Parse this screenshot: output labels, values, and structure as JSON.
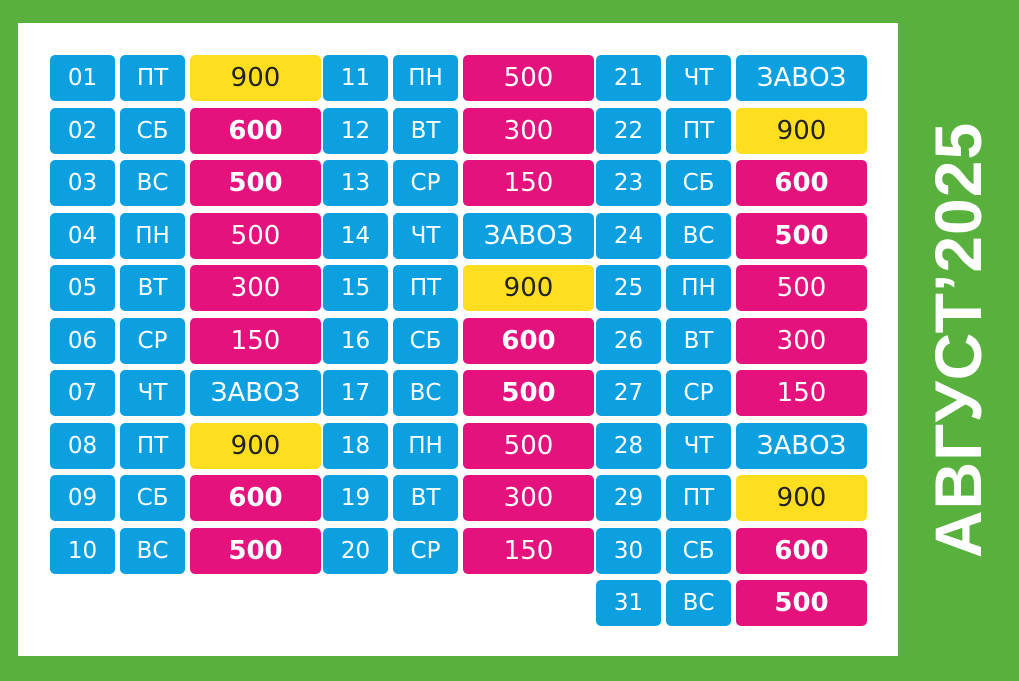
{
  "title": "АВГУСТ’2025",
  "colors": {
    "background_green": "#57b13c",
    "blue": "#0ca0e0",
    "magenta": "#e5127d",
    "yellow": "#ffde1f",
    "white": "#ffffff"
  },
  "columns": [
    [
      {
        "date": "01",
        "day": "ПТ",
        "value": "900",
        "color": "yellow",
        "bold": false
      },
      {
        "date": "02",
        "day": "СБ",
        "value": "600",
        "color": "magenta",
        "bold": true
      },
      {
        "date": "03",
        "day": "ВС",
        "value": "500",
        "color": "magenta",
        "bold": true
      },
      {
        "date": "04",
        "day": "ПН",
        "value": "500",
        "color": "magenta",
        "bold": false
      },
      {
        "date": "05",
        "day": "ВТ",
        "value": "300",
        "color": "magenta",
        "bold": false
      },
      {
        "date": "06",
        "day": "СР",
        "value": "150",
        "color": "magenta",
        "bold": false
      },
      {
        "date": "07",
        "day": "ЧТ",
        "value": "ЗАВОЗ",
        "color": "blue",
        "bold": false
      },
      {
        "date": "08",
        "day": "ПТ",
        "value": "900",
        "color": "yellow",
        "bold": false
      },
      {
        "date": "09",
        "day": "СБ",
        "value": "600",
        "color": "magenta",
        "bold": true
      },
      {
        "date": "10",
        "day": "ВС",
        "value": "500",
        "color": "magenta",
        "bold": true
      }
    ],
    [
      {
        "date": "11",
        "day": "ПН",
        "value": "500",
        "color": "magenta",
        "bold": false
      },
      {
        "date": "12",
        "day": "ВТ",
        "value": "300",
        "color": "magenta",
        "bold": false
      },
      {
        "date": "13",
        "day": "СР",
        "value": "150",
        "color": "magenta",
        "bold": false
      },
      {
        "date": "14",
        "day": "ЧТ",
        "value": "ЗАВОЗ",
        "color": "blue",
        "bold": false
      },
      {
        "date": "15",
        "day": "ПТ",
        "value": "900",
        "color": "yellow",
        "bold": false
      },
      {
        "date": "16",
        "day": "СБ",
        "value": "600",
        "color": "magenta",
        "bold": true
      },
      {
        "date": "17",
        "day": "ВС",
        "value": "500",
        "color": "magenta",
        "bold": true
      },
      {
        "date": "18",
        "day": "ПН",
        "value": "500",
        "color": "magenta",
        "bold": false
      },
      {
        "date": "19",
        "day": "ВТ",
        "value": "300",
        "color": "magenta",
        "bold": false
      },
      {
        "date": "20",
        "day": "СР",
        "value": "150",
        "color": "magenta",
        "bold": false
      }
    ],
    [
      {
        "date": "21",
        "day": "ЧТ",
        "value": "ЗАВОЗ",
        "color": "blue",
        "bold": false
      },
      {
        "date": "22",
        "day": "ПТ",
        "value": "900",
        "color": "yellow",
        "bold": false
      },
      {
        "date": "23",
        "day": "СБ",
        "value": "600",
        "color": "magenta",
        "bold": true
      },
      {
        "date": "24",
        "day": "ВС",
        "value": "500",
        "color": "magenta",
        "bold": true
      },
      {
        "date": "25",
        "day": "ПН",
        "value": "500",
        "color": "magenta",
        "bold": false
      },
      {
        "date": "26",
        "day": "ВТ",
        "value": "300",
        "color": "magenta",
        "bold": false
      },
      {
        "date": "27",
        "day": "СР",
        "value": "150",
        "color": "magenta",
        "bold": false
      },
      {
        "date": "28",
        "day": "ЧТ",
        "value": "ЗАВОЗ",
        "color": "blue",
        "bold": false
      },
      {
        "date": "29",
        "day": "ПТ",
        "value": "900",
        "color": "yellow",
        "bold": false
      },
      {
        "date": "30",
        "day": "СБ",
        "value": "600",
        "color": "magenta",
        "bold": true
      },
      {
        "date": "31",
        "day": "ВС",
        "value": "500",
        "color": "magenta",
        "bold": true
      }
    ]
  ]
}
